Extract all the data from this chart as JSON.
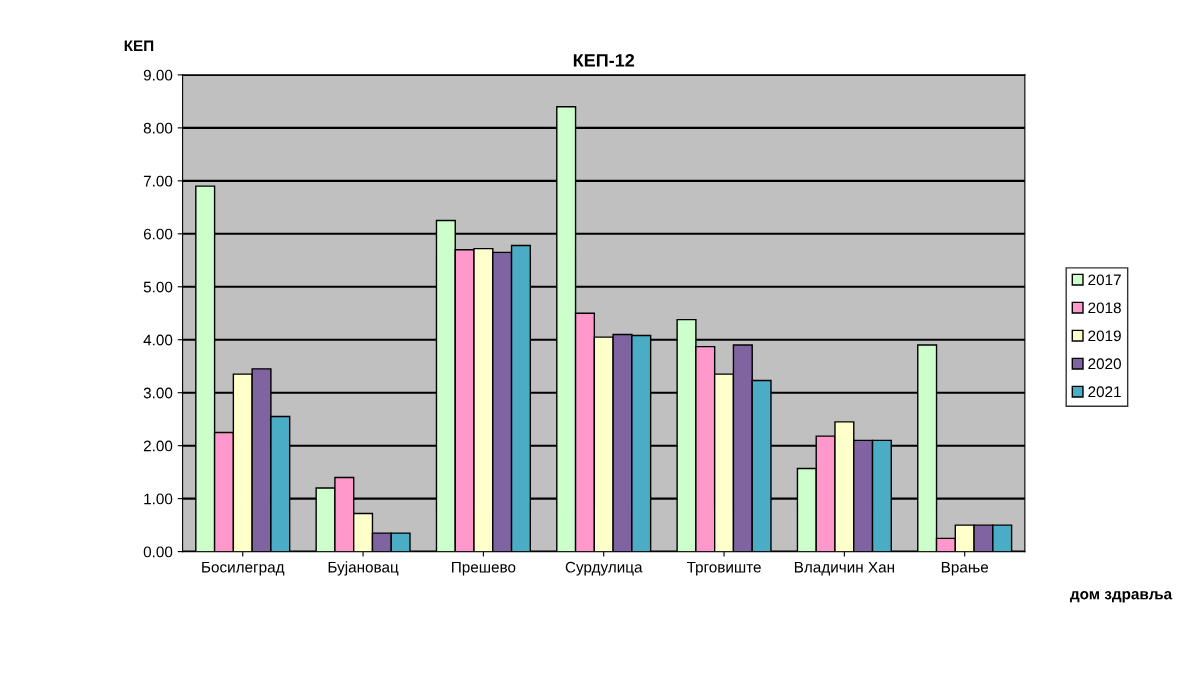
{
  "chart_data": {
    "type": "bar",
    "title": "КЕП-12",
    "ylabel": "КЕП",
    "xlabel": "дом здравља",
    "categories": [
      "Босилеград",
      "Бујановац",
      "Прешево",
      "Сурдулица",
      "Трговиште",
      "Владичин Хан",
      "Врање"
    ],
    "series": [
      {
        "name": "2017",
        "color": "#ccffcc",
        "values": [
          6.9,
          1.2,
          6.25,
          8.4,
          4.38,
          1.57,
          3.9
        ]
      },
      {
        "name": "2018",
        "color": "#ff99cc",
        "values": [
          2.25,
          1.4,
          5.7,
          4.5,
          3.87,
          2.18,
          0.25
        ]
      },
      {
        "name": "2019",
        "color": "#ffffcc",
        "values": [
          3.35,
          0.72,
          5.72,
          4.05,
          3.35,
          2.45,
          0.5
        ]
      },
      {
        "name": "2020",
        "color": "#8064a2",
        "values": [
          3.45,
          0.35,
          5.65,
          4.1,
          3.9,
          2.1,
          0.5
        ]
      },
      {
        "name": "2021",
        "color": "#4bacc6",
        "values": [
          2.55,
          0.35,
          5.78,
          4.08,
          3.23,
          2.1,
          0.5
        ]
      }
    ],
    "ylim": [
      0,
      9
    ],
    "yticks": [
      {
        "value": 0,
        "label": "0.00"
      },
      {
        "value": 1,
        "label": "1.00"
      },
      {
        "value": 2,
        "label": "2.00"
      },
      {
        "value": 3,
        "label": "3.00"
      },
      {
        "value": 4,
        "label": "4.00"
      },
      {
        "value": 5,
        "label": "5.00"
      },
      {
        "value": 6,
        "label": "6.00"
      },
      {
        "value": 7,
        "label": "7.00"
      },
      {
        "value": 8,
        "label": "8.00"
      },
      {
        "value": 9,
        "label": "9.00"
      }
    ],
    "grid": "y",
    "legend": "right"
  }
}
